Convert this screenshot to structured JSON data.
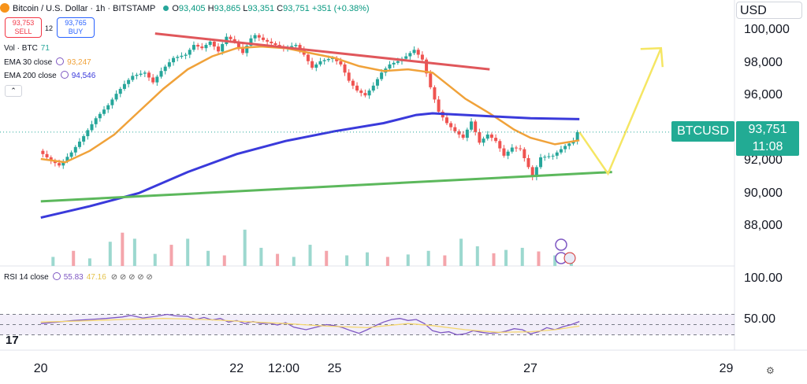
{
  "header": {
    "symbol": "Bitcoin / U.S. Dollar · 1h · BITSTAMP",
    "open_label": "O",
    "open": "93,405",
    "high_label": "H",
    "high": "93,865",
    "low_label": "L",
    "low": "93,351",
    "close_label": "C",
    "close": "93,751",
    "change": "+351 (+0.38%)"
  },
  "trade": {
    "sell_price": "93,753",
    "sell_label": "SELL",
    "spread": "12",
    "buy_price": "93,765",
    "buy_label": "BUY"
  },
  "indicators": [
    {
      "name": "Vol · BTC",
      "value": "71",
      "color": "#26a69a"
    },
    {
      "name": "EMA 30 close",
      "value": "93,247",
      "color": "#f0a23a"
    },
    {
      "name": "EMA 200 close",
      "value": "94,546",
      "color": "#3a3adb"
    }
  ],
  "currency": "USD",
  "price_tag": {
    "symbol": "BTCUSD",
    "price": "93,751",
    "countdown": "11:08"
  },
  "rsi": {
    "label": "RSI 14 close",
    "value1": "55.83",
    "value2": "47.16",
    "value1_color": "#7e57c2",
    "value2_color": "#f5d76e",
    "axis": [
      "100.00",
      "50.00"
    ],
    "levels": [
      70,
      50,
      30
    ]
  },
  "tv_logo": "17",
  "chart_data": {
    "type": "candlestick",
    "ylim": [
      86500,
      100600
    ],
    "yticks": [
      88000,
      90000,
      92000,
      94000,
      96000,
      98000,
      100000
    ],
    "ytick_labels": [
      "88,000",
      "90,000",
      "92,000",
      "94,000",
      "96,000",
      "98,000",
      "100,000"
    ],
    "xticks": [
      {
        "label": "20",
        "hour": 0
      },
      {
        "label": "22",
        "hour": 48
      },
      {
        "label": "12:00",
        "hour": 60
      },
      {
        "label": "25",
        "hour": 72
      },
      {
        "label": "27",
        "hour": 120
      },
      {
        "label": "29",
        "hour": 168
      }
    ],
    "price_path": [
      [
        0,
        92600
      ],
      [
        3,
        92000
      ],
      [
        5,
        91700
      ],
      [
        8,
        92500
      ],
      [
        11,
        93500
      ],
      [
        14,
        94600
      ],
      [
        17,
        95400
      ],
      [
        19,
        96100
      ],
      [
        21,
        96700
      ],
      [
        23,
        97200
      ],
      [
        26,
        97400
      ],
      [
        28,
        96800
      ],
      [
        30,
        97500
      ],
      [
        33,
        98300
      ],
      [
        36,
        98500
      ],
      [
        38,
        99100
      ],
      [
        40,
        98900
      ],
      [
        42,
        99300
      ],
      [
        44,
        98700
      ],
      [
        46,
        99600
      ],
      [
        48,
        99300
      ],
      [
        50,
        98600
      ],
      [
        52,
        99500
      ],
      [
        53,
        99700
      ],
      [
        55,
        99400
      ],
      [
        57,
        99200
      ],
      [
        60,
        98900
      ],
      [
        63,
        99100
      ],
      [
        65,
        98500
      ],
      [
        67,
        97700
      ],
      [
        69,
        98100
      ],
      [
        72,
        98300
      ],
      [
        74,
        97900
      ],
      [
        76,
        96900
      ],
      [
        78,
        96300
      ],
      [
        80,
        96000
      ],
      [
        82,
        96600
      ],
      [
        84,
        97400
      ],
      [
        86,
        97900
      ],
      [
        88,
        98100
      ],
      [
        90,
        98400
      ],
      [
        92,
        98800
      ],
      [
        94,
        98200
      ],
      [
        96,
        96500
      ],
      [
        98,
        95000
      ],
      [
        100,
        94300
      ],
      [
        102,
        93800
      ],
      [
        104,
        93400
      ],
      [
        106,
        94400
      ],
      [
        108,
        93100
      ],
      [
        110,
        93600
      ],
      [
        112,
        93200
      ],
      [
        114,
        92300
      ],
      [
        116,
        92800
      ],
      [
        118,
        92700
      ],
      [
        120,
        91600
      ],
      [
        121,
        91000
      ],
      [
        123,
        92200
      ],
      [
        126,
        92300
      ],
      [
        129,
        92900
      ],
      [
        131,
        93200
      ],
      [
        132,
        93751
      ]
    ],
    "ema30": [
      [
        0,
        92100
      ],
      [
        6,
        91900
      ],
      [
        12,
        92600
      ],
      [
        18,
        93600
      ],
      [
        24,
        95000
      ],
      [
        30,
        96400
      ],
      [
        36,
        97600
      ],
      [
        42,
        98400
      ],
      [
        48,
        98900
      ],
      [
        54,
        99000
      ],
      [
        60,
        98900
      ],
      [
        66,
        98600
      ],
      [
        72,
        98300
      ],
      [
        78,
        97800
      ],
      [
        84,
        97500
      ],
      [
        90,
        97600
      ],
      [
        96,
        97400
      ],
      [
        100,
        96600
      ],
      [
        104,
        95800
      ],
      [
        110,
        94900
      ],
      [
        116,
        93900
      ],
      [
        120,
        93400
      ],
      [
        126,
        93000
      ],
      [
        132,
        93247
      ]
    ],
    "ema200": [
      [
        0,
        88500
      ],
      [
        12,
        89200
      ],
      [
        24,
        90000
      ],
      [
        36,
        91300
      ],
      [
        48,
        92400
      ],
      [
        60,
        93200
      ],
      [
        72,
        93800
      ],
      [
        84,
        94300
      ],
      [
        92,
        94800
      ],
      [
        96,
        94900
      ],
      [
        104,
        94800
      ],
      [
        112,
        94700
      ],
      [
        120,
        94600
      ],
      [
        132,
        94546
      ]
    ],
    "volume": [
      [
        3,
        300
      ],
      [
        8,
        500
      ],
      [
        12,
        250
      ],
      [
        17,
        800
      ],
      [
        20,
        1100
      ],
      [
        23,
        900
      ],
      [
        28,
        400
      ],
      [
        32,
        700
      ],
      [
        36,
        900
      ],
      [
        41,
        500
      ],
      [
        45,
        350
      ],
      [
        50,
        1200
      ],
      [
        54,
        600
      ],
      [
        58,
        400
      ],
      [
        62,
        300
      ],
      [
        66,
        700
      ],
      [
        70,
        500
      ],
      [
        75,
        350
      ],
      [
        80,
        450
      ],
      [
        85,
        300
      ],
      [
        90,
        380
      ],
      [
        95,
        500
      ],
      [
        99,
        350
      ],
      [
        103,
        900
      ],
      [
        107,
        650
      ],
      [
        111,
        420
      ],
      [
        114,
        530
      ],
      [
        118,
        600
      ],
      [
        122,
        480
      ],
      [
        126,
        350
      ],
      [
        130,
        280
      ]
    ],
    "rsi": [
      [
        0,
        52
      ],
      [
        4,
        55
      ],
      [
        8,
        58
      ],
      [
        12,
        60
      ],
      [
        16,
        62
      ],
      [
        20,
        65
      ],
      [
        22,
        68
      ],
      [
        25,
        63
      ],
      [
        28,
        66
      ],
      [
        31,
        70
      ],
      [
        33,
        67
      ],
      [
        36,
        66
      ],
      [
        38,
        60
      ],
      [
        40,
        64
      ],
      [
        42,
        59
      ],
      [
        44,
        62
      ],
      [
        46,
        55
      ],
      [
        48,
        58
      ],
      [
        50,
        52
      ],
      [
        52,
        56
      ],
      [
        54,
        52
      ],
      [
        56,
        53
      ],
      [
        58,
        49
      ],
      [
        60,
        54
      ],
      [
        62,
        45
      ],
      [
        65,
        40
      ],
      [
        68,
        46
      ],
      [
        70,
        50
      ],
      [
        72,
        48
      ],
      [
        74,
        44
      ],
      [
        76,
        38
      ],
      [
        78,
        33
      ],
      [
        80,
        40
      ],
      [
        82,
        48
      ],
      [
        84,
        55
      ],
      [
        86,
        60
      ],
      [
        88,
        62
      ],
      [
        90,
        58
      ],
      [
        92,
        60
      ],
      [
        94,
        52
      ],
      [
        96,
        38
      ],
      [
        98,
        34
      ],
      [
        100,
        36
      ],
      [
        102,
        30
      ],
      [
        104,
        32
      ],
      [
        106,
        38
      ],
      [
        108,
        35
      ],
      [
        110,
        33
      ],
      [
        112,
        34
      ],
      [
        114,
        37
      ],
      [
        116,
        42
      ],
      [
        118,
        40
      ],
      [
        120,
        32
      ],
      [
        122,
        36
      ],
      [
        124,
        44
      ],
      [
        126,
        40
      ],
      [
        128,
        46
      ],
      [
        130,
        50
      ],
      [
        132,
        56
      ]
    ],
    "rsi_ma": [
      [
        0,
        55
      ],
      [
        10,
        57
      ],
      [
        20,
        60
      ],
      [
        30,
        62
      ],
      [
        40,
        60
      ],
      [
        50,
        56
      ],
      [
        60,
        52
      ],
      [
        70,
        47
      ],
      [
        80,
        44
      ],
      [
        90,
        52
      ],
      [
        96,
        48
      ],
      [
        104,
        40
      ],
      [
        112,
        35
      ],
      [
        120,
        36
      ],
      [
        126,
        40
      ],
      [
        132,
        47
      ]
    ],
    "annotations": {
      "resistance": [
        [
          28,
          99800
        ],
        [
          110,
          97600
        ]
      ],
      "support": [
        [
          0,
          89500
        ],
        [
          140,
          91300
        ]
      ],
      "projection": [
        [
          132,
          93751
        ],
        [
          139,
          91200
        ],
        [
          152,
          98900
        ]
      ]
    }
  }
}
